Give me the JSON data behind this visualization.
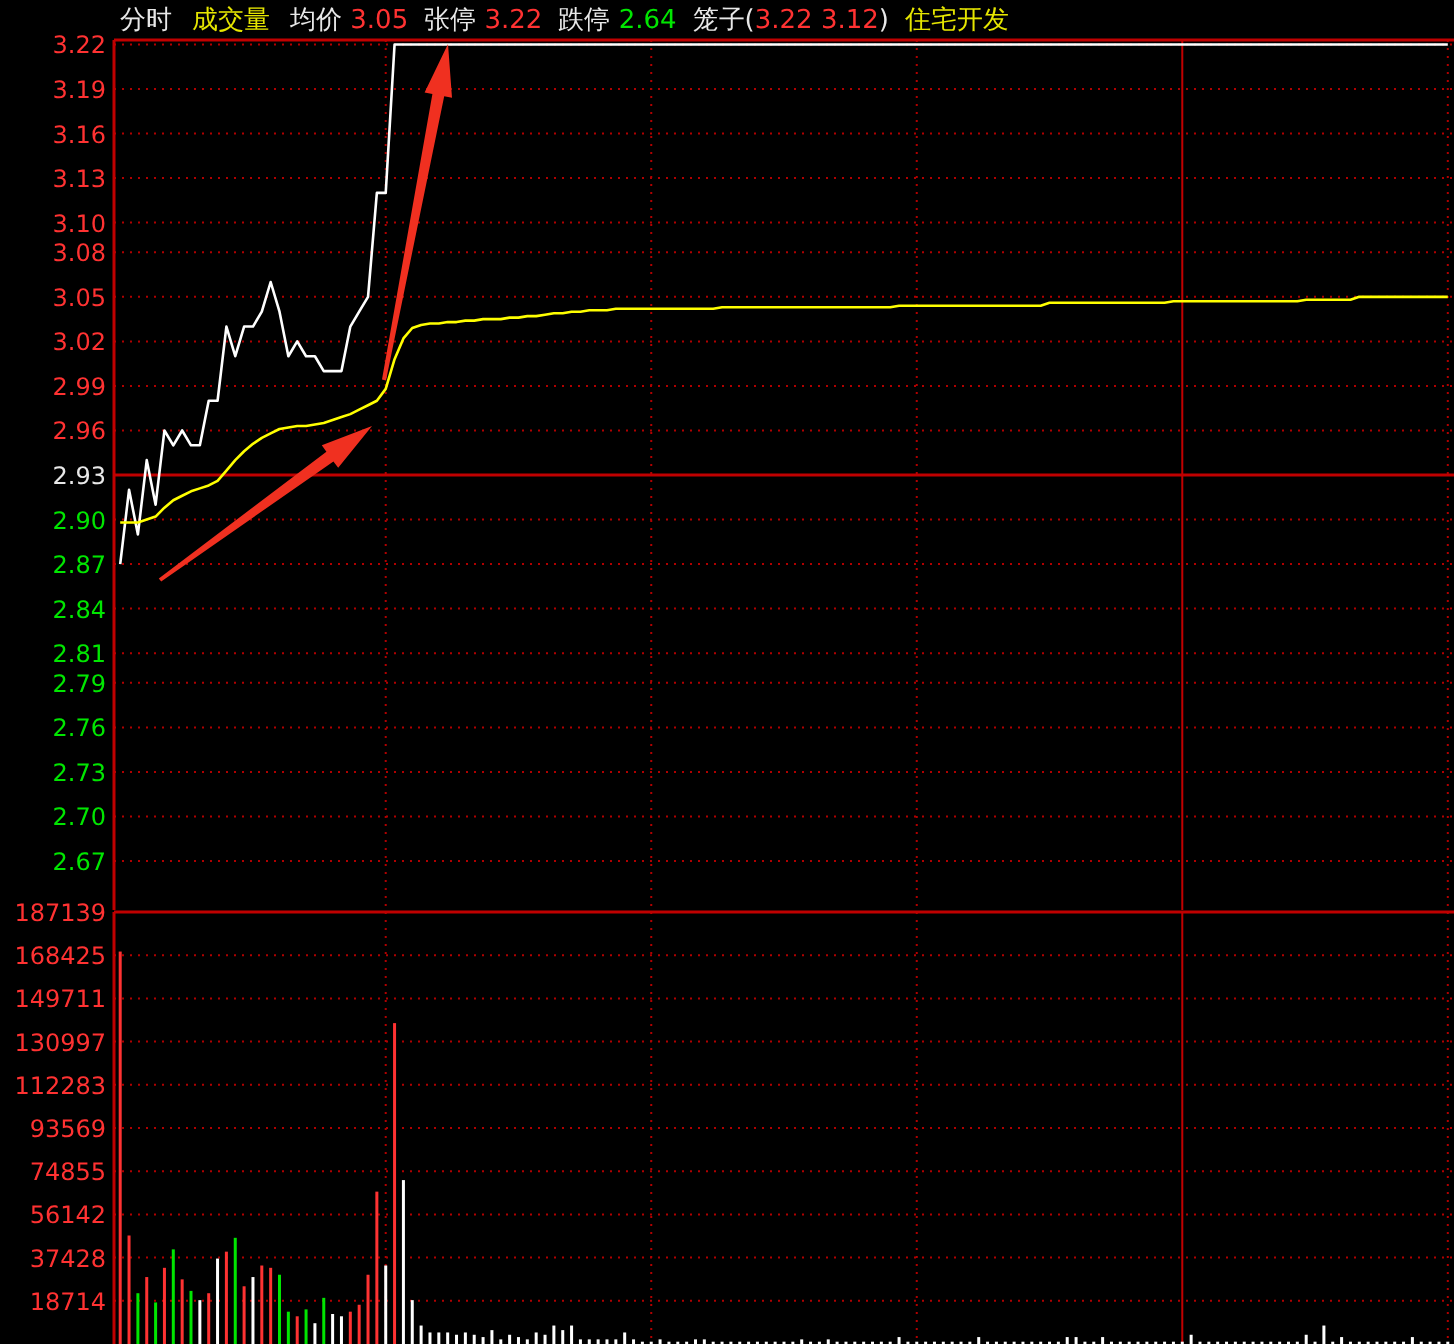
{
  "chart_data": [
    {
      "type": "line",
      "title": "分时",
      "subtitle": "成交量",
      "annotations": [
        "均价 3.05",
        "张停 3.22",
        "跌停 2.64",
        "笼子(3.22 3.12)",
        "住宅开发"
      ],
      "categories": [
        null,
        null,
        null,
        null,
        null,
        null,
        null,
        null,
        null,
        null,
        null,
        null,
        null,
        null,
        null,
        null,
        null,
        null,
        null,
        null,
        null,
        null,
        null,
        null,
        null,
        null,
        null,
        null,
        null,
        null,
        null,
        null,
        null,
        null,
        null,
        null,
        null,
        null,
        null,
        null,
        null,
        null,
        null,
        null,
        null,
        null,
        null,
        null,
        null,
        null,
        null,
        null,
        null,
        null,
        null,
        null,
        null,
        null,
        null,
        null,
        null,
        null,
        null,
        null,
        null,
        null,
        null,
        null,
        null,
        null,
        null,
        null,
        null,
        null,
        null,
        null,
        null,
        null,
        null,
        null,
        null,
        null,
        null,
        null,
        null,
        null,
        null,
        null,
        null,
        null,
        null,
        null,
        null,
        null,
        null,
        null,
        null,
        null,
        null,
        null,
        null,
        null,
        null,
        null,
        null,
        null,
        null,
        null,
        null,
        null,
        null,
        null,
        null,
        null,
        null,
        null,
        null,
        null,
        null,
        null,
        null,
        null,
        null,
        null,
        null,
        null,
        null,
        null,
        null,
        null,
        null,
        null,
        null,
        null,
        null,
        null,
        null,
        null,
        null,
        null,
        null,
        null,
        null,
        null,
        null,
        null,
        null,
        null,
        null,
        null,
        null
      ],
      "series": [
        {
          "type": "line",
          "color": "#ffffff",
          "values": [
            2.87,
            2.92,
            2.89,
            2.94,
            2.91,
            2.96,
            2.95,
            2.96,
            2.95,
            2.95,
            2.98,
            2.98,
            3.03,
            3.01,
            3.03,
            3.03,
            3.04,
            3.06,
            3.04,
            3.01,
            3.02,
            3.01,
            3.01,
            3.0,
            3.0,
            3.0,
            3.03,
            3.04,
            3.05,
            3.12,
            3.12,
            3.22,
            3.22,
            3.22,
            3.22,
            3.22,
            3.22,
            3.22,
            3.22,
            3.22,
            3.22,
            3.22,
            3.22,
            3.22,
            3.22,
            3.22,
            3.22,
            3.22,
            3.22,
            3.22,
            3.22,
            3.22,
            3.22,
            3.22,
            3.22,
            3.22,
            3.22,
            3.22,
            3.22,
            3.22,
            3.22,
            3.22,
            3.22,
            3.22,
            3.22,
            3.22,
            3.22,
            3.22,
            3.22,
            3.22,
            3.22,
            3.22,
            3.22,
            3.22,
            3.22,
            3.22,
            3.22,
            3.22,
            3.22,
            3.22,
            3.22,
            3.22,
            3.22,
            3.22,
            3.22,
            3.22,
            3.22,
            3.22,
            3.22,
            3.22,
            3.22,
            3.22,
            3.22,
            3.22,
            3.22,
            3.22,
            3.22,
            3.22,
            3.22,
            3.22,
            3.22,
            3.22,
            3.22,
            3.22,
            3.22,
            3.22,
            3.22,
            3.22,
            3.22,
            3.22,
            3.22,
            3.22,
            3.22,
            3.22,
            3.22,
            3.22,
            3.22,
            3.22,
            3.22,
            3.22,
            3.22,
            3.22,
            3.22,
            3.22,
            3.22,
            3.22,
            3.22,
            3.22,
            3.22,
            3.22,
            3.22,
            3.22,
            3.22,
            3.22,
            3.22,
            3.22,
            3.22,
            3.22,
            3.22,
            3.22,
            3.22,
            3.22,
            3.22,
            3.22,
            3.22,
            3.22,
            3.22,
            3.22,
            3.22,
            3.22,
            3.22
          ]
        },
        {
          "type": "line",
          "color": "#ffff00",
          "values": [
            2.898,
            2.898,
            2.898,
            2.9,
            2.902,
            2.908,
            2.913,
            2.916,
            2.919,
            2.921,
            2.923,
            2.926,
            2.933,
            2.94,
            2.946,
            2.951,
            2.955,
            2.958,
            2.961,
            2.962,
            2.963,
            2.963,
            2.964,
            2.965,
            2.967,
            2.969,
            2.971,
            2.974,
            2.977,
            2.98,
            2.988,
            3.008,
            3.022,
            3.029,
            3.031,
            3.032,
            3.032,
            3.033,
            3.033,
            3.034,
            3.034,
            3.035,
            3.035,
            3.035,
            3.036,
            3.036,
            3.037,
            3.037,
            3.038,
            3.039,
            3.039,
            3.04,
            3.04,
            3.041,
            3.041,
            3.041,
            3.042,
            3.042,
            3.042,
            3.042,
            3.042,
            3.042,
            3.042,
            3.042,
            3.042,
            3.042,
            3.042,
            3.042,
            3.043,
            3.043,
            3.043,
            3.043,
            3.043,
            3.043,
            3.043,
            3.043,
            3.043,
            3.043,
            3.043,
            3.043,
            3.043,
            3.043,
            3.043,
            3.043,
            3.043,
            3.043,
            3.043,
            3.043,
            3.044,
            3.044,
            3.044,
            3.044,
            3.044,
            3.044,
            3.044,
            3.044,
            3.044,
            3.044,
            3.044,
            3.044,
            3.044,
            3.044,
            3.044,
            3.044,
            3.044,
            3.046,
            3.046,
            3.046,
            3.046,
            3.046,
            3.046,
            3.046,
            3.046,
            3.046,
            3.046,
            3.046,
            3.046,
            3.046,
            3.046,
            3.047,
            3.047,
            3.047,
            3.047,
            3.047,
            3.047,
            3.047,
            3.047,
            3.047,
            3.047,
            3.047,
            3.047,
            3.047,
            3.047,
            3.047,
            3.048,
            3.048,
            3.048,
            3.048,
            3.048,
            3.048,
            3.05,
            3.05,
            3.05,
            3.05,
            3.05,
            3.05,
            3.05,
            3.05,
            3.05,
            3.05,
            3.05
          ]
        }
      ],
      "ylim": [
        2.637,
        3.223
      ],
      "yticks": [
        {
          "value": 3.22,
          "label": "3.22"
        },
        {
          "value": 3.19,
          "label": "3.19"
        },
        {
          "value": 3.16,
          "label": "3.16"
        },
        {
          "value": 3.13,
          "label": "3.13"
        },
        {
          "value": 3.1,
          "label": "3.10"
        },
        {
          "value": 3.08,
          "label": "3.08"
        },
        {
          "value": 3.05,
          "label": "3.05"
        },
        {
          "value": 3.02,
          "label": "3.02"
        },
        {
          "value": 2.99,
          "label": "2.99"
        },
        {
          "value": 2.96,
          "label": "2.96"
        },
        {
          "value": 2.93,
          "label": "2.93"
        },
        {
          "value": 2.9,
          "label": "2.90"
        },
        {
          "value": 2.87,
          "label": "2.87"
        },
        {
          "value": 2.84,
          "label": "2.84"
        },
        {
          "value": 2.81,
          "label": "2.81"
        },
        {
          "value": 2.79,
          "label": "2.79"
        },
        {
          "value": 2.76,
          "label": "2.76"
        },
        {
          "value": 2.73,
          "label": "2.73"
        },
        {
          "value": 2.7,
          "label": "2.70"
        },
        {
          "value": 2.67,
          "label": "2.67"
        }
      ],
      "ref_lines": [
        {
          "axis": "y",
          "value": 2.93,
          "color": "#c00000",
          "line_style": "solid"
        }
      ],
      "grid": true,
      "tick_labels": "y"
    },
    {
      "type": "bar",
      "categories": [
        null,
        null,
        null,
        null,
        null,
        null,
        null,
        null,
        null,
        null,
        null,
        null,
        null,
        null,
        null,
        null,
        null,
        null,
        null,
        null,
        null,
        null,
        null,
        null,
        null,
        null,
        null,
        null,
        null,
        null,
        null,
        null,
        null,
        null,
        null,
        null,
        null,
        null,
        null,
        null,
        null,
        null,
        null,
        null,
        null,
        null,
        null,
        null,
        null,
        null,
        null,
        null,
        null,
        null,
        null,
        null,
        null,
        null,
        null,
        null,
        null,
        null,
        null,
        null,
        null,
        null,
        null,
        null,
        null,
        null,
        null,
        null,
        null,
        null,
        null,
        null,
        null,
        null,
        null,
        null,
        null,
        null,
        null,
        null,
        null,
        null,
        null,
        null,
        null,
        null,
        null,
        null,
        null,
        null,
        null,
        null,
        null,
        null,
        null,
        null,
        null,
        null,
        null,
        null,
        null,
        null,
        null,
        null,
        null,
        null,
        null,
        null,
        null,
        null,
        null,
        null,
        null,
        null,
        null,
        null,
        null,
        null,
        null,
        null,
        null,
        null,
        null,
        null,
        null,
        null,
        null,
        null,
        null,
        null,
        null,
        null,
        null,
        null,
        null,
        null,
        null,
        null,
        null,
        null,
        null,
        null,
        null,
        null,
        null,
        null,
        null
      ],
      "values": [
        170000,
        47000,
        22000,
        29000,
        18000,
        33000,
        41000,
        28000,
        23000,
        19000,
        22000,
        37000,
        40000,
        46000,
        25000,
        29000,
        34000,
        33000,
        30000,
        14000,
        12000,
        15000,
        9000,
        20000,
        13000,
        12000,
        14000,
        17000,
        30000,
        66000,
        34000,
        139000,
        71000,
        19000,
        8000,
        5000,
        5000,
        5000,
        4000,
        5000,
        4000,
        3000,
        6000,
        2000,
        4000,
        3000,
        2000,
        5000,
        4000,
        8000,
        6000,
        8000,
        2000,
        2000,
        2000,
        2000,
        2000,
        5000,
        2000,
        1000,
        1000,
        2000,
        1000,
        1000,
        1000,
        2000,
        2000,
        1000,
        1000,
        1000,
        1000,
        1000,
        1000,
        1000,
        1000,
        1000,
        1000,
        2000,
        1000,
        1000,
        2000,
        1000,
        1000,
        1000,
        1000,
        1000,
        1000,
        1000,
        3000,
        1000,
        1000,
        1000,
        1000,
        1000,
        1000,
        1000,
        1000,
        3000,
        1000,
        1000,
        1000,
        1000,
        1000,
        1000,
        1000,
        1000,
        1000,
        3000,
        3000,
        1000,
        1000,
        3000,
        1000,
        1000,
        1000,
        1000,
        1000,
        1000,
        1000,
        1000,
        1000,
        4000,
        1000,
        1000,
        1000,
        1000,
        1000,
        1000,
        1000,
        1000,
        1000,
        1000,
        1000,
        1000,
        4000,
        1000,
        8000,
        1000,
        3000,
        1000,
        1000,
        1000,
        1000,
        1000,
        1000,
        1000,
        3000,
        1000,
        1000,
        1000,
        1000
      ],
      "colors": [
        "#ff3232",
        "#ff3232",
        "#00e600",
        "#ff3232",
        "#00e600",
        "#ff3232",
        "#00e600",
        "#ff3232",
        "#00e600",
        "#ffffff",
        "#ff3232",
        "#ffffff",
        "#ff3232",
        "#00e600",
        "#ff3232",
        "#ffffff",
        "#ff3232",
        "#ff3232",
        "#00e600",
        "#00e600",
        "#ff3232",
        "#00e600",
        "#ffffff",
        "#00e600",
        "#ffffff",
        "#ffffff",
        "#ff3232",
        "#ff3232",
        "#ff3232",
        "#ff3232",
        "#ffffff",
        "#ff3232",
        "#ffffff",
        "#ffffff",
        "#ffffff",
        "#ffffff",
        "#ffffff",
        "#ffffff",
        "#ffffff",
        "#ffffff",
        "#ffffff",
        "#ffffff",
        "#ffffff",
        "#ffffff",
        "#ffffff",
        "#ffffff",
        "#ffffff",
        "#ffffff",
        "#ffffff",
        "#ffffff",
        "#ffffff",
        "#ffffff",
        "#ffffff",
        "#ffffff",
        "#ffffff",
        "#ffffff",
        "#ffffff",
        "#ffffff",
        "#ffffff",
        "#ffffff",
        "#ffffff",
        "#ffffff",
        "#ffffff",
        "#ffffff",
        "#ffffff",
        "#ffffff",
        "#ffffff",
        "#ffffff",
        "#ffffff",
        "#ffffff",
        "#ffffff",
        "#ffffff",
        "#ffffff",
        "#ffffff",
        "#ffffff",
        "#ffffff",
        "#ffffff",
        "#ffffff",
        "#ffffff",
        "#ffffff",
        "#ffffff",
        "#ffffff",
        "#ffffff",
        "#ffffff",
        "#ffffff",
        "#ffffff",
        "#ffffff",
        "#ffffff",
        "#ffffff",
        "#ffffff",
        "#ffffff",
        "#ffffff",
        "#ffffff",
        "#ffffff",
        "#ffffff",
        "#ffffff",
        "#ffffff",
        "#ffffff",
        "#ffffff",
        "#ffffff",
        "#ffffff",
        "#ffffff",
        "#ffffff",
        "#ffffff",
        "#ffffff",
        "#ffffff",
        "#ffffff",
        "#ffffff",
        "#ffffff",
        "#ffffff",
        "#ffffff",
        "#ffffff",
        "#ffffff",
        "#ffffff",
        "#ffffff",
        "#ffffff",
        "#ffffff",
        "#ffffff",
        "#ffffff",
        "#ffffff",
        "#ffffff",
        "#ffffff",
        "#ffffff",
        "#ffffff",
        "#ffffff",
        "#ffffff",
        "#ffffff",
        "#ffffff",
        "#ffffff",
        "#ffffff",
        "#ffffff",
        "#ffffff",
        "#ffffff",
        "#ffffff",
        "#ffffff",
        "#ffffff",
        "#ffffff",
        "#ffffff",
        "#ffffff",
        "#ffffff",
        "#ffffff",
        "#ffffff",
        "#ffffff",
        "#ffffff",
        "#ffffff",
        "#ffffff",
        "#ffffff",
        "#ffffff",
        "#ffffff",
        "#ffffff",
        "#ffffff"
      ],
      "ylim": [
        0,
        187139
      ],
      "yticks": [
        18714,
        37428,
        56142,
        74855,
        93569,
        112283,
        130997,
        149711,
        168425,
        187139
      ],
      "grid": true,
      "tick_labels": "y"
    }
  ]
}
